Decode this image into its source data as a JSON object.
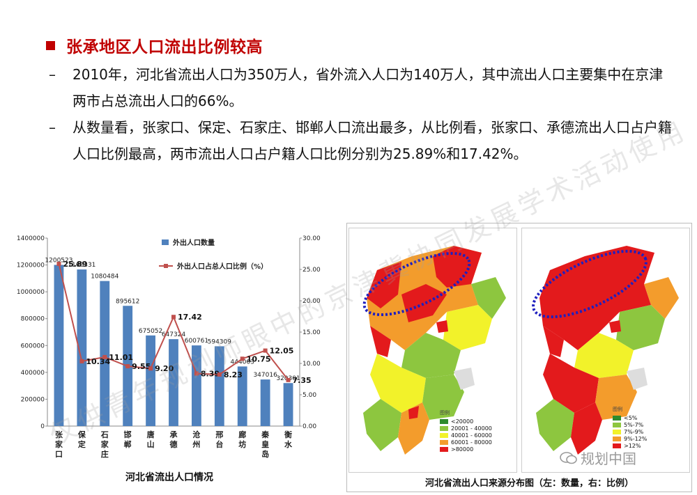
{
  "slide": {
    "title": "张承地区人口流出比例较高",
    "bullets": [
      "2010年，河北省流出人口为350万人，省外流入人口为140万人，其中流出人口主要集中在京津两市占总流出人口的66%。",
      "从数量看，张家口、保定、石家庄、邯郸人口流出最多，从比例看，张家口、承德流出人口占户籍人口比例最高，两市流出人口占户籍人口比例分别为25.89%和17.42%。"
    ],
    "bullet_marker": "–",
    "watermark": "仅供青年规划师眼中的京津冀协同发展学术活动使用"
  },
  "chart_data": {
    "type": "bar",
    "caption": "河北省流出人口情况",
    "categories": [
      "张家口",
      "保定",
      "石家庄",
      "邯郸",
      "唐山",
      "承德",
      "沧州",
      "邢台",
      "廊坊",
      "秦皇岛",
      "衡水"
    ],
    "series": [
      {
        "name": "外出人口数量",
        "type": "bar",
        "axis": "left",
        "color": "#4f81bd",
        "values": [
          1200523,
          1166331,
          1080484,
          895612,
          675052,
          647324,
          600761,
          594309,
          444003,
          347016,
          320301
        ],
        "labels": [
          "1200523",
          "1166331",
          "1080484",
          "895612",
          "675052",
          "647324",
          "600761",
          "594309",
          "444003",
          "347016",
          "320301"
        ]
      },
      {
        "name": "外出人口占总人口比例（%）",
        "type": "line",
        "axis": "right",
        "color": "#c0504d",
        "values": [
          25.89,
          10.34,
          11.01,
          9.55,
          9.2,
          17.42,
          8.39,
          8.23,
          10.75,
          12.05,
          7.35
        ],
        "labels": [
          "25.89",
          "10.34",
          "11.01",
          "9.55",
          "9.20",
          "17.42",
          "8.39",
          "8.23",
          "10.75",
          "12.05",
          "7.35"
        ]
      }
    ],
    "y_left": {
      "min": 0,
      "max": 1400000,
      "ticks": [
        "0",
        "200000",
        "400000",
        "600000",
        "800000",
        "1000000",
        "1200000",
        "1400000"
      ]
    },
    "y_right": {
      "min": 0,
      "max": 30,
      "ticks": [
        "0.00",
        "5.00",
        "10.00",
        "15.00",
        "20.00",
        "25.00",
        "30.00"
      ]
    },
    "grid": false,
    "legend_position": "top-right"
  },
  "maps": {
    "caption": "河北省流出人口来源分布图（左：数量，右：比例）",
    "left_legend": {
      "title": "图例",
      "items": [
        {
          "label": "<20000",
          "color": "#2e8b2e"
        },
        {
          "label": "20001 - 40000",
          "color": "#8dc63f"
        },
        {
          "label": "40001 - 60000",
          "color": "#f2f22a"
        },
        {
          "label": "60001 - 80000",
          "color": "#f39c2c"
        },
        {
          "label": ">80000",
          "color": "#e31a1c"
        }
      ]
    },
    "right_legend": {
      "title": "图例",
      "items": [
        {
          "label": "<5%",
          "color": "#2e8b2e"
        },
        {
          "label": "5%-7%",
          "color": "#8dc63f"
        },
        {
          "label": "7%-9%",
          "color": "#f2f22a"
        },
        {
          "label": "9%-12%",
          "color": "#f39c2c"
        },
        {
          "label": ">12%",
          "color": "#e31a1c"
        }
      ]
    }
  },
  "logo": {
    "text": "规划中国",
    "icon": "wechat-icon"
  }
}
